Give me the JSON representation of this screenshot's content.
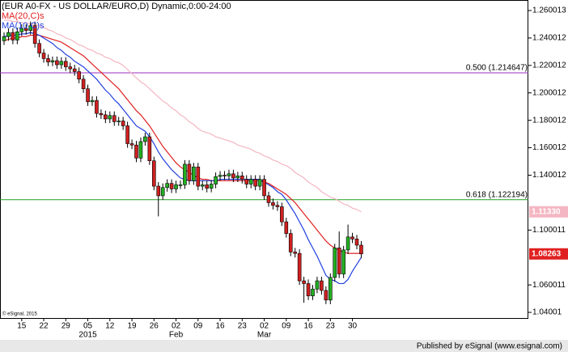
{
  "chart_data": {
    "type": "candlestick",
    "title": "(EUR A0-FX - US DOLLAR/EURO,D) Dynamic,0:00-24:00",
    "categories": [
      null,
      null,
      null,
      null,
      "15",
      null,
      null,
      null,
      null,
      "22",
      null,
      null,
      null,
      null,
      "29",
      null,
      null,
      null,
      null,
      "05",
      null,
      null,
      null,
      null,
      "12",
      null,
      null,
      null,
      null,
      "19",
      null,
      null,
      null,
      null,
      "26",
      null,
      null,
      null,
      null,
      "02",
      null,
      null,
      null,
      null,
      "09",
      null,
      null,
      null,
      null,
      "16",
      null,
      null,
      null,
      null,
      "23",
      null,
      null,
      null,
      null,
      "02",
      null,
      null,
      null,
      null,
      "09",
      null,
      null,
      null,
      null,
      "16",
      null,
      null,
      null,
      null,
      "23",
      null,
      null,
      null,
      null,
      "30",
      null,
      null
    ],
    "months": [
      null,
      null,
      null,
      null,
      null,
      null,
      null,
      null,
      null,
      null,
      null,
      null,
      null,
      null,
      null,
      null,
      null,
      null,
      null,
      "2015",
      null,
      null,
      null,
      null,
      null,
      null,
      null,
      null,
      null,
      null,
      null,
      null,
      null,
      null,
      null,
      null,
      null,
      null,
      null,
      "Feb",
      null,
      null,
      null,
      null,
      null,
      null,
      null,
      null,
      null,
      null,
      null,
      null,
      null,
      null,
      null,
      null,
      null,
      null,
      null,
      "Mar",
      null,
      null,
      null,
      null,
      null,
      null,
      null,
      null,
      null,
      null,
      null,
      null,
      null,
      null,
      null,
      null,
      null,
      null,
      null,
      null,
      null,
      null
    ],
    "open": [
      1.238,
      1.241,
      1.244,
      1.2385,
      1.2445,
      1.247,
      1.2455,
      1.249,
      1.236,
      1.229,
      1.225,
      1.2225,
      1.2235,
      1.2205,
      1.223,
      1.219,
      1.2175,
      1.2155,
      1.21,
      1.203,
      1.1935,
      1.1945,
      1.185,
      1.184,
      1.181,
      1.1835,
      1.179,
      1.1795,
      1.176,
      1.163,
      1.162,
      1.1525,
      1.1645,
      1.168,
      1.1505,
      1.132,
      1.125,
      1.131,
      1.134,
      1.13,
      1.133,
      1.133,
      1.148,
      1.136,
      1.146,
      1.132,
      1.133,
      1.1305,
      1.1335,
      1.139,
      1.14,
      1.1395,
      1.141,
      1.138,
      1.1395,
      1.137,
      1.1335,
      1.137,
      1.132,
      1.137,
      1.125,
      1.12,
      1.118,
      1.117,
      1.106,
      1.0975,
      1.084,
      1.083,
      1.063,
      1.061,
      1.052,
      1.057,
      1.063,
      1.056,
      1.049,
      1.0655,
      1.087,
      1.068,
      1.0855,
      1.095,
      1.0935,
      1.089
    ],
    "high": [
      1.244,
      1.247,
      1.247,
      1.2475,
      1.25,
      1.25,
      1.252,
      1.252,
      1.239,
      1.232,
      1.228,
      1.2265,
      1.2265,
      1.226,
      1.226,
      1.222,
      1.2205,
      1.2185,
      1.213,
      1.206,
      1.1975,
      1.1975,
      1.188,
      1.187,
      1.1865,
      1.1865,
      1.1825,
      1.1825,
      1.179,
      1.166,
      1.165,
      1.1675,
      1.171,
      1.171,
      1.1535,
      1.135,
      1.134,
      1.137,
      1.137,
      1.136,
      1.136,
      1.151,
      1.151,
      1.149,
      1.149,
      1.136,
      1.136,
      1.1365,
      1.142,
      1.143,
      1.143,
      1.144,
      1.144,
      1.1425,
      1.1425,
      1.14,
      1.14,
      1.14,
      1.14,
      1.14,
      1.128,
      1.123,
      1.121,
      1.12,
      1.109,
      1.1005,
      1.087,
      1.086,
      1.066,
      1.064,
      1.06,
      1.066,
      1.066,
      1.059,
      1.0685,
      1.09,
      1.099,
      1.0885,
      1.104,
      1.098,
      1.0965,
      1.092
    ],
    "low": [
      1.235,
      1.238,
      1.2355,
      1.2355,
      1.2415,
      1.2425,
      1.2425,
      1.233,
      1.226,
      1.222,
      1.2195,
      1.2195,
      1.2175,
      1.2175,
      1.216,
      1.2145,
      1.2125,
      1.207,
      1.2,
      1.1905,
      1.1905,
      1.182,
      1.181,
      1.178,
      1.178,
      1.176,
      1.176,
      1.173,
      1.16,
      1.159,
      1.1495,
      1.1495,
      1.1615,
      1.1475,
      1.129,
      1.11,
      1.122,
      1.128,
      1.127,
      1.127,
      1.13,
      1.13,
      1.133,
      1.133,
      1.129,
      1.129,
      1.1275,
      1.1275,
      1.1305,
      1.136,
      1.1365,
      1.1365,
      1.135,
      1.135,
      1.134,
      1.1305,
      1.1305,
      1.129,
      1.129,
      1.122,
      1.117,
      1.115,
      1.114,
      1.103,
      1.0945,
      1.081,
      1.08,
      1.06,
      1.047,
      1.049,
      1.049,
      1.054,
      1.053,
      1.046,
      1.046,
      1.0625,
      1.065,
      1.065,
      1.0825,
      1.0905,
      1.086,
      1.0796
    ],
    "close": [
      1.241,
      1.244,
      1.2385,
      1.2445,
      1.247,
      1.2455,
      1.249,
      1.236,
      1.229,
      1.225,
      1.2225,
      1.2235,
      1.2205,
      1.223,
      1.219,
      1.2175,
      1.2155,
      1.21,
      1.203,
      1.1935,
      1.1945,
      1.185,
      1.184,
      1.181,
      1.1835,
      1.179,
      1.1795,
      1.176,
      1.163,
      1.162,
      1.1525,
      1.1645,
      1.168,
      1.1505,
      1.132,
      1.125,
      1.131,
      1.134,
      1.13,
      1.133,
      1.133,
      1.148,
      1.136,
      1.146,
      1.132,
      1.133,
      1.1305,
      1.1335,
      1.139,
      1.14,
      1.1395,
      1.141,
      1.138,
      1.1395,
      1.137,
      1.1335,
      1.137,
      1.132,
      1.137,
      1.125,
      1.12,
      1.118,
      1.117,
      1.106,
      1.0975,
      1.084,
      1.083,
      1.063,
      1.061,
      1.052,
      1.057,
      1.063,
      1.056,
      1.049,
      1.0655,
      1.087,
      1.068,
      1.0855,
      1.095,
      1.0935,
      1.089,
      1.08263
    ],
    "up_color": "#22b022",
    "down_color": "#d02020",
    "series": [
      {
        "color": "#f4b6c2",
        "values": [
          1.253,
          1.253,
          1.252,
          1.252,
          1.251,
          1.251,
          1.25,
          1.25,
          1.249,
          1.248,
          1.246,
          1.245,
          1.243,
          1.242,
          1.24,
          1.239,
          1.237,
          1.235,
          1.234,
          1.232,
          1.231,
          1.229,
          1.228,
          1.226,
          1.225,
          1.223,
          1.222,
          1.22,
          1.217,
          1.214,
          1.211,
          1.208,
          1.206,
          1.203,
          1.2,
          1.197,
          1.194,
          1.192,
          1.189,
          1.187,
          1.184,
          1.182,
          1.179,
          1.177,
          1.174,
          1.172,
          1.171,
          1.17,
          1.168,
          1.167,
          1.166,
          1.165,
          1.164,
          1.162,
          1.161,
          1.16,
          1.159,
          1.157,
          1.156,
          1.154,
          1.153,
          1.151,
          1.15,
          1.148,
          1.147,
          1.145,
          1.142,
          1.14,
          1.138,
          1.135,
          1.133,
          1.131,
          1.128,
          1.126,
          1.124,
          1.123,
          1.121,
          1.119,
          1.118,
          1.116,
          1.115,
          1.1133
        ]
      },
      {
        "name": "MA(20,C)s",
        "color": "#e02020",
        "values": [
          1.238,
          1.239,
          1.24,
          1.24,
          1.241,
          1.241,
          1.242,
          1.242,
          1.242,
          1.241,
          1.24,
          1.239,
          1.238,
          1.237,
          1.235,
          1.233,
          1.231,
          1.229,
          1.227,
          1.224,
          1.221,
          1.218,
          1.215,
          1.212,
          1.209,
          1.206,
          1.203,
          1.199,
          1.195,
          1.191,
          1.187,
          1.184,
          1.18,
          1.176,
          1.171,
          1.166,
          1.161,
          1.157,
          1.153,
          1.149,
          1.146,
          1.144,
          1.142,
          1.14,
          1.138,
          1.137,
          1.137,
          1.136,
          1.136,
          1.136,
          1.136,
          1.136,
          1.136,
          1.136,
          1.136,
          1.136,
          1.136,
          1.136,
          1.136,
          1.135,
          1.134,
          1.132,
          1.13,
          1.128,
          1.126,
          1.123,
          1.12,
          1.116,
          1.112,
          1.108,
          1.104,
          1.1,
          1.096,
          1.092,
          1.089,
          1.087,
          1.085,
          1.084,
          1.083,
          1.083,
          1.083,
          1.083
        ]
      },
      {
        "name": "MA(10,C)s",
        "color": "#2040e0",
        "values": [
          1.241,
          1.242,
          1.242,
          1.242,
          1.243,
          1.243,
          1.244,
          1.243,
          1.242,
          1.24,
          1.238,
          1.236,
          1.233,
          1.231,
          1.228,
          1.226,
          1.223,
          1.221,
          1.219,
          1.216,
          1.213,
          1.21,
          1.206,
          1.202,
          1.199,
          1.195,
          1.192,
          1.188,
          1.184,
          1.18,
          1.176,
          1.174,
          1.172,
          1.168,
          1.163,
          1.157,
          1.152,
          1.148,
          1.144,
          1.141,
          1.138,
          1.137,
          1.136,
          1.136,
          1.136,
          1.136,
          1.136,
          1.136,
          1.136,
          1.137,
          1.137,
          1.137,
          1.137,
          1.137,
          1.137,
          1.137,
          1.137,
          1.137,
          1.137,
          1.135,
          1.133,
          1.131,
          1.128,
          1.126,
          1.122,
          1.117,
          1.112,
          1.106,
          1.1,
          1.093,
          1.087,
          1.081,
          1.074,
          1.067,
          1.064,
          1.063,
          1.061,
          1.061,
          1.064,
          1.07,
          1.075,
          1.08
        ]
      }
    ],
    "ylim": [
      1.0359,
      1.2677
    ],
    "yticks": [
      1.260013,
      1.240012,
      1.220012,
      1.200012,
      1.180012,
      1.160012,
      1.140012,
      1.100011,
      1.060011,
      1.04001
    ],
    "hlines": [
      {
        "value": 1.214647,
        "label": "0.500 (1.214647)",
        "color": "#9b30c0"
      },
      {
        "value": 1.122194,
        "label": "0.618 (1.122194)",
        "color": "#22a022"
      }
    ],
    "price_labels": [
      {
        "value": 1.1133,
        "label": "1.11330",
        "color": "#f4b6c2"
      },
      {
        "value": 1.08263,
        "label": "1.08263",
        "color": "#e02020"
      }
    ],
    "copyright": "© eSignal, 2015",
    "credit": "Published by eSignal (www.esignal.com)"
  }
}
